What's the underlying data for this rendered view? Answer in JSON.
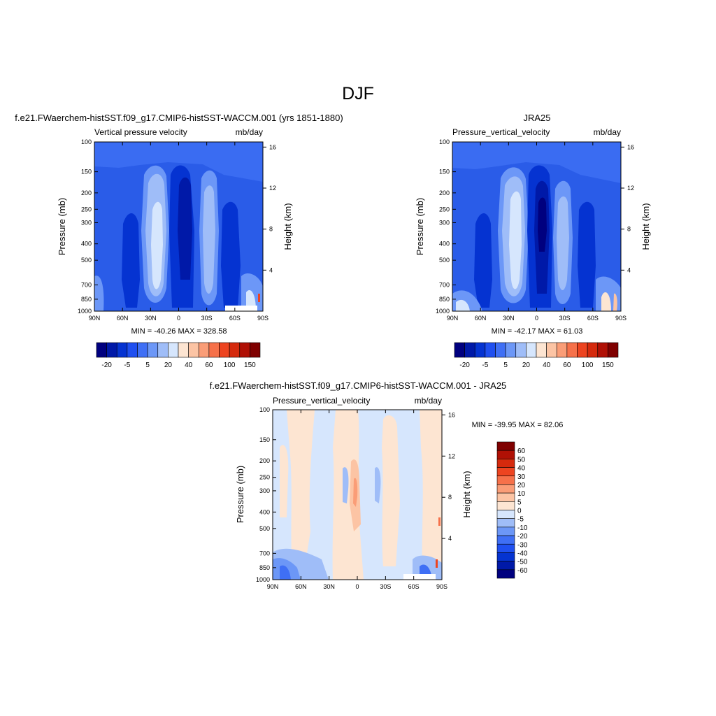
{
  "figure": {
    "title": "DJF",
    "colors": {
      "background": "#ffffff",
      "axis": "#000000"
    }
  },
  "chart_data": [
    {
      "type": "heatmap",
      "panel": "model",
      "title": "f.e21.FWaerchem-histSST.f09_g17.CMIP6-histSST-WACCM.001 (yrs 1851-1880)",
      "subtitle_left": "Vertical pressure velocity",
      "subtitle_right": "mb/day",
      "ylabel": "Pressure (mb)",
      "ylabel_right": "Height (km)",
      "x_ticks": [
        "90N",
        "60N",
        "30N",
        "0",
        "30S",
        "60S",
        "90S"
      ],
      "y_ticks": [
        "100",
        "150",
        "200",
        "250",
        "300",
        "400",
        "500",
        "700",
        "850",
        "1000"
      ],
      "y_ticks_right": [
        "16",
        "12",
        "8",
        "4"
      ],
      "y_scale": "log",
      "stats": "MIN = -40.26  MAX = 328.58",
      "colorbar": {
        "orientation": "horizontal",
        "tick_labels": [
          "-20",
          "-5",
          "5",
          "20",
          "40",
          "60",
          "100",
          "150"
        ],
        "colors": [
          "#00007f",
          "#0019a8",
          "#0533d1",
          "#1f4ff0",
          "#3f6ff5",
          "#6c97f7",
          "#9fbdf8",
          "#d6e6fd",
          "#fde5d2",
          "#fcc4a4",
          "#fa9d77",
          "#f6714a",
          "#ed4420",
          "#d52a0d",
          "#b01005",
          "#7f0000"
        ]
      }
    },
    {
      "type": "heatmap",
      "panel": "obs",
      "title": "JRA25",
      "subtitle_left": "Pressure_vertical_velocity",
      "subtitle_right": "mb/day",
      "ylabel": "Pressure (mb)",
      "ylabel_right": "Height (km)",
      "x_ticks": [
        "90N",
        "60N",
        "30N",
        "0",
        "30S",
        "60S",
        "90S"
      ],
      "y_ticks": [
        "100",
        "150",
        "200",
        "250",
        "300",
        "400",
        "500",
        "700",
        "850",
        "1000"
      ],
      "y_ticks_right": [
        "16",
        "12",
        "8",
        "4"
      ],
      "y_scale": "log",
      "stats": "MIN = -42.17  MAX =  61.03",
      "colorbar": {
        "orientation": "horizontal",
        "tick_labels": [
          "-20",
          "-5",
          "5",
          "20",
          "40",
          "60",
          "100",
          "150"
        ],
        "colors": [
          "#00007f",
          "#0019a8",
          "#0533d1",
          "#1f4ff0",
          "#3f6ff5",
          "#6c97f7",
          "#9fbdf8",
          "#d6e6fd",
          "#fde5d2",
          "#fcc4a4",
          "#fa9d77",
          "#f6714a",
          "#ed4420",
          "#d52a0d",
          "#b01005",
          "#7f0000"
        ]
      }
    },
    {
      "type": "heatmap",
      "panel": "difference",
      "title": "f.e21.FWaerchem-histSST.f09_g17.CMIP6-histSST-WACCM.001 - JRA25",
      "subtitle_left": "Pressure_vertical_velocity",
      "subtitle_right": "mb/day",
      "ylabel": "Pressure (mb)",
      "ylabel_right": "Height (km)",
      "x_ticks": [
        "90N",
        "60N",
        "30N",
        "0",
        "30S",
        "60S",
        "90S"
      ],
      "y_ticks": [
        "100",
        "150",
        "200",
        "250",
        "300",
        "400",
        "500",
        "700",
        "850",
        "1000"
      ],
      "y_ticks_right": [
        "16",
        "12",
        "8",
        "4"
      ],
      "y_scale": "log",
      "stats": "MIN = -39.95  MAX =  82.06",
      "colorbar": {
        "orientation": "vertical",
        "tick_labels": [
          "60",
          "50",
          "40",
          "30",
          "20",
          "10",
          "5",
          "0",
          "-5",
          "-10",
          "-20",
          "-30",
          "-40",
          "-50",
          "-60"
        ],
        "colors": [
          "#7f0000",
          "#b01005",
          "#d52a0d",
          "#ed4420",
          "#f6714a",
          "#fa9d77",
          "#fcc4a4",
          "#fde5d2",
          "#d6e6fd",
          "#9fbdf8",
          "#6c97f7",
          "#3f6ff5",
          "#1f4ff0",
          "#0533d1",
          "#0019a8",
          "#00007f"
        ]
      }
    }
  ]
}
